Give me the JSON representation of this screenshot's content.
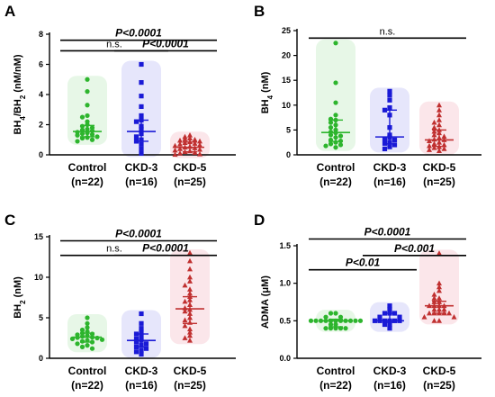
{
  "chart_data": [
    {
      "type": "scatter",
      "panel": "A",
      "ylabel_parts": [
        "BH",
        "4",
        "/BH",
        "2",
        " (nM/nM)"
      ],
      "ylim": [
        0,
        8
      ],
      "yticks": [
        "0",
        "2",
        "4",
        "6",
        "8"
      ],
      "categories": [
        {
          "name": "Control",
          "n": "(n=22)"
        },
        {
          "name": "CKD-3",
          "n": "(n=16)"
        },
        {
          "name": "CKD-5",
          "n": "(n=25)"
        }
      ],
      "series": [
        {
          "category": "Control",
          "color": "#2db52d",
          "marker": "circle",
          "median": 1.55,
          "q1": 1.2,
          "q3": 1.95,
          "values": [
            5.0,
            4.2,
            3.3,
            2.6,
            2.5,
            2.2,
            2.0,
            1.9,
            1.8,
            1.7,
            1.65,
            1.6,
            1.5,
            1.45,
            1.4,
            1.35,
            1.3,
            1.2,
            1.15,
            1.1,
            1.0,
            0.9
          ]
        },
        {
          "category": "CKD-3",
          "color": "#1a1ad6",
          "marker": "square",
          "median": 1.55,
          "q1": 0.9,
          "q3": 2.3,
          "values": [
            6.0,
            4.8,
            3.9,
            3.2,
            2.6,
            2.3,
            2.2,
            1.9,
            1.7,
            1.4,
            1.2,
            1.0,
            0.9,
            0.7,
            0.4,
            0.1
          ]
        },
        {
          "category": "CKD-5",
          "color": "#c03030",
          "marker": "triangle",
          "median": 0.5,
          "q1": 0.2,
          "q3": 0.85,
          "values": [
            1.3,
            1.2,
            1.1,
            1.05,
            1.0,
            0.95,
            0.9,
            0.85,
            0.8,
            0.75,
            0.7,
            0.65,
            0.6,
            0.55,
            0.5,
            0.45,
            0.4,
            0.35,
            0.3,
            0.25,
            0.2,
            0.15,
            0.1,
            0.05,
            0.02
          ]
        }
      ],
      "brackets": [
        {
          "from": 0,
          "to": 2,
          "label": "P<0.0001",
          "y": 7.6,
          "style": "p"
        },
        {
          "from": 0,
          "to": 1,
          "label": "n.s.",
          "y": 6.9,
          "style": "ns"
        },
        {
          "from": 1,
          "to": 2,
          "label": "P<0.0001",
          "y": 6.9,
          "style": "p"
        }
      ]
    },
    {
      "type": "scatter",
      "panel": "B",
      "ylabel_parts": [
        "BH",
        "4",
        " (nM)"
      ],
      "ylim": [
        0,
        25
      ],
      "yticks": [
        "0",
        "5",
        "10",
        "15",
        "20",
        "25"
      ],
      "categories": [
        {
          "name": "Control",
          "n": "(n=22)"
        },
        {
          "name": "CKD-3",
          "n": "(n=16)"
        },
        {
          "name": "CKD-5",
          "n": "(n=25)"
        }
      ],
      "series": [
        {
          "category": "Control",
          "color": "#2db52d",
          "marker": "circle",
          "median": 4.5,
          "q1": 2.7,
          "q3": 7.0,
          "values": [
            22.5,
            14.5,
            10.5,
            8.0,
            7.2,
            7.0,
            6.5,
            6.0,
            5.5,
            5.0,
            4.6,
            4.4,
            4.0,
            3.8,
            3.5,
            3.0,
            2.8,
            2.5,
            2.2,
            2.0,
            1.8,
            1.5
          ]
        },
        {
          "category": "CKD-3",
          "color": "#1a1ad6",
          "marker": "square",
          "median": 3.6,
          "q1": 2.2,
          "q3": 9.0,
          "values": [
            12.8,
            12.0,
            11.0,
            9.5,
            9.0,
            8.0,
            5.5,
            4.0,
            3.5,
            3.2,
            3.0,
            2.5,
            2.3,
            2.0,
            1.6,
            1.2
          ]
        },
        {
          "category": "CKD-5",
          "color": "#c03030",
          "marker": "triangle",
          "median": 3.0,
          "q1": 1.7,
          "q3": 5.0,
          "values": [
            10.0,
            9.0,
            8.0,
            7.0,
            6.5,
            6.0,
            5.5,
            5.0,
            4.7,
            4.4,
            4.0,
            3.7,
            3.4,
            3.1,
            3.0,
            2.8,
            2.5,
            2.2,
            2.0,
            1.8,
            1.6,
            1.4,
            1.2,
            1.0,
            0.8
          ]
        }
      ],
      "brackets": [
        {
          "from": 0,
          "to": 2,
          "label": "n.s.",
          "y": 23.5,
          "style": "ns"
        }
      ]
    },
    {
      "type": "scatter",
      "panel": "C",
      "ylabel_parts": [
        "BH",
        "2",
        " (nM)"
      ],
      "ylim": [
        0,
        15
      ],
      "yticks": [
        "0",
        "5",
        "10",
        "15"
      ],
      "categories": [
        {
          "name": "Control",
          "n": "(n=22)"
        },
        {
          "name": "CKD-3",
          "n": "(n=16)"
        },
        {
          "name": "CKD-5",
          "n": "(n=25)"
        }
      ],
      "series": [
        {
          "category": "Control",
          "color": "#2db52d",
          "marker": "circle",
          "median": 2.6,
          "q1": 2.0,
          "q3": 3.1,
          "values": [
            5.0,
            4.3,
            3.8,
            3.5,
            3.3,
            3.1,
            3.0,
            2.9,
            2.8,
            2.7,
            2.6,
            2.55,
            2.5,
            2.4,
            2.3,
            2.2,
            2.1,
            2.0,
            1.8,
            1.6,
            1.4,
            1.2
          ]
        },
        {
          "category": "CKD-3",
          "color": "#1a1ad6",
          "marker": "square",
          "median": 2.2,
          "q1": 1.4,
          "q3": 3.0,
          "values": [
            5.5,
            4.3,
            3.7,
            3.2,
            3.0,
            2.7,
            2.4,
            2.2,
            2.0,
            1.8,
            1.6,
            1.4,
            1.2,
            1.0,
            0.8,
            0.5
          ]
        },
        {
          "category": "CKD-5",
          "color": "#c03030",
          "marker": "triangle",
          "median": 6.1,
          "q1": 4.3,
          "q3": 7.6,
          "values": [
            13.0,
            12.0,
            11.0,
            10.0,
            9.5,
            9.0,
            8.5,
            8.0,
            7.6,
            7.2,
            7.0,
            6.6,
            6.2,
            6.0,
            5.8,
            5.5,
            5.0,
            4.7,
            4.4,
            4.0,
            3.6,
            3.2,
            2.8,
            2.5,
            2.2
          ]
        }
      ],
      "brackets": [
        {
          "from": 0,
          "to": 2,
          "label": "P<0.0001",
          "y": 14.5,
          "style": "p"
        },
        {
          "from": 0,
          "to": 1,
          "label": "n.s.",
          "y": 12.7,
          "style": "ns"
        },
        {
          "from": 1,
          "to": 2,
          "label": "P<0.0001",
          "y": 12.7,
          "style": "p"
        }
      ]
    },
    {
      "type": "scatter",
      "panel": "D",
      "ylabel_parts": [
        "ADMA (",
        "μ",
        "M)"
      ],
      "ylim": [
        0,
        1.5
      ],
      "yticks": [
        "0.0",
        "0.5",
        "1.0",
        "1.5"
      ],
      "categories": [
        {
          "name": "Control",
          "n": "(n=22)"
        },
        {
          "name": "CKD-3",
          "n": "(n=16)"
        },
        {
          "name": "CKD-5",
          "n": "(n=25)"
        }
      ],
      "series": [
        {
          "category": "Control",
          "color": "#2db52d",
          "marker": "circle",
          "median": 0.5,
          "q1": 0.42,
          "q3": 0.52,
          "values": [
            0.6,
            0.6,
            0.55,
            0.55,
            0.5,
            0.5,
            0.5,
            0.5,
            0.5,
            0.5,
            0.5,
            0.5,
            0.5,
            0.5,
            0.5,
            0.45,
            0.45,
            0.4,
            0.4,
            0.4,
            0.4,
            0.4
          ]
        },
        {
          "category": "CKD-3",
          "color": "#1a1ad6",
          "marker": "square",
          "median": 0.5,
          "q1": 0.48,
          "q3": 0.6,
          "values": [
            0.7,
            0.65,
            0.6,
            0.6,
            0.6,
            0.55,
            0.55,
            0.5,
            0.5,
            0.5,
            0.5,
            0.5,
            0.5,
            0.45,
            0.45,
            0.4
          ]
        },
        {
          "category": "CKD-5",
          "color": "#c03030",
          "marker": "triangle",
          "median": 0.7,
          "q1": 0.6,
          "q3": 0.76,
          "values": [
            1.4,
            1.0,
            0.95,
            0.9,
            0.85,
            0.8,
            0.8,
            0.75,
            0.75,
            0.7,
            0.7,
            0.7,
            0.7,
            0.65,
            0.65,
            0.65,
            0.6,
            0.6,
            0.6,
            0.6,
            0.6,
            0.55,
            0.55,
            0.5,
            0.5
          ]
        }
      ],
      "brackets": [
        {
          "from": 0,
          "to": 2,
          "label": "P<0.0001",
          "y": 1.59,
          "style": "p"
        },
        {
          "from": 1,
          "to": 2,
          "label": "P<0.001",
          "y": 1.37,
          "style": "p"
        },
        {
          "from": 0,
          "to": 1,
          "label": "P<0.01",
          "y": 1.18,
          "style": "p"
        }
      ]
    }
  ]
}
